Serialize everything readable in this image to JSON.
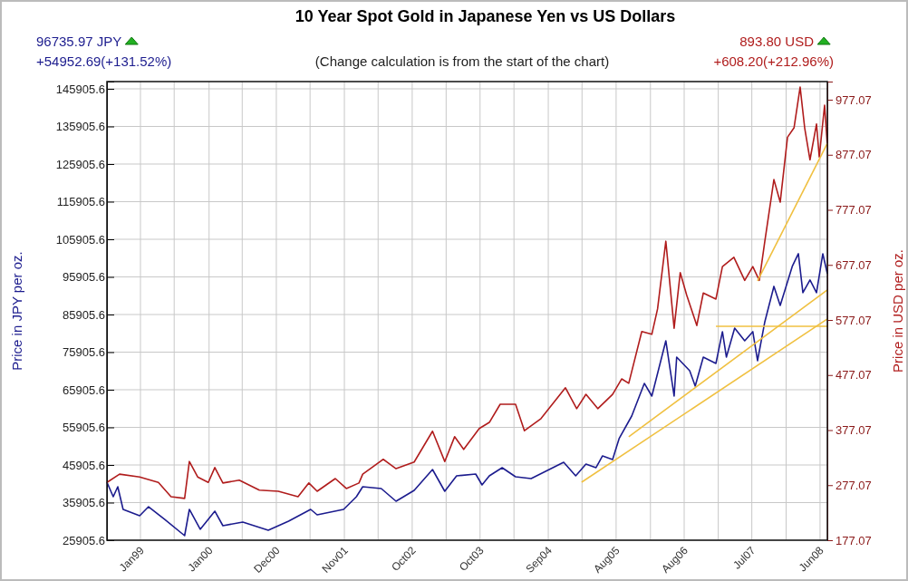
{
  "chart_data": {
    "type": "line",
    "title": "10 Year Spot Gold in Japanese Yen vs US Dollars",
    "subtitle": "(Change calculation is from the start of the chart)",
    "ylabel": "Price in JPY per oz.",
    "y2label": "Price in USD per oz.",
    "annotations": [
      "96735.97 JPY",
      "+54952.69(+131.52%)",
      "893.80 USD",
      "+608.20(+212.96%)"
    ],
    "xlim": [
      "1998-08-01",
      "2008-08-01"
    ],
    "xticks": [
      {
        "value": "1999-01-18",
        "label": "Jan99"
      },
      {
        "value": "1999-07-08",
        "label": null
      },
      {
        "value": "2000-01-01",
        "label": "Jan00"
      },
      {
        "value": "2000-06-17",
        "label": null
      },
      {
        "value": "2000-12-07",
        "label": "Dec00"
      },
      {
        "value": "2001-05-27",
        "label": null
      },
      {
        "value": "2001-11-17",
        "label": "Nov01"
      },
      {
        "value": "2002-05-07",
        "label": null
      },
      {
        "value": "2002-10-27",
        "label": "Oct02"
      },
      {
        "value": "2003-04-17",
        "label": null
      },
      {
        "value": "2003-10-06",
        "label": "Oct03"
      },
      {
        "value": "2004-03-26",
        "label": null
      },
      {
        "value": "2004-09-16",
        "label": "Sep04"
      },
      {
        "value": "2005-03-06",
        "label": null
      },
      {
        "value": "2005-08-26",
        "label": "Aug05"
      },
      {
        "value": "2006-02-16",
        "label": null
      },
      {
        "value": "2006-08-06",
        "label": "Aug06"
      },
      {
        "value": "2007-01-26",
        "label": null
      },
      {
        "value": "2007-07-15",
        "label": "Jul07"
      },
      {
        "value": "2008-01-05",
        "label": null
      },
      {
        "value": "2008-06-25",
        "label": "Jun08"
      }
    ],
    "ylim": [
      25905.6,
      147830
    ],
    "yticks": [
      25905.6,
      35905.6,
      45905.6,
      55905.6,
      65905.6,
      75905.6,
      85905.6,
      95905.6,
      105905.6,
      115905.6,
      125905.6,
      135905.6,
      145905.6
    ],
    "y2lim": [
      177.07,
      1010
    ],
    "y2ticks": [
      177.07,
      277.07,
      377.07,
      477.07,
      577.07,
      677.07,
      777.07,
      877.07,
      977.07
    ],
    "grid": true,
    "series": [
      {
        "color": "#1c1c8e",
        "x": [
          "1998-08-01",
          "1998-09-02",
          "1998-09-25",
          "1998-10-22",
          "1999-01-14",
          "1999-02-28",
          "1999-05-20",
          "1999-08-30",
          "1999-09-23",
          "1999-11-17",
          "2000-01-30",
          "2000-03-11",
          "2000-06-20",
          "2000-10-27",
          "2001-02-07",
          "2001-05-30",
          "2001-07-02",
          "2001-11-13",
          "2002-01-17",
          "2002-02-18",
          "2002-05-23",
          "2002-08-06",
          "2002-11-06",
          "2003-02-07",
          "2003-04-10",
          "2003-06-09",
          "2003-09-14",
          "2003-10-16",
          "2003-11-22",
          "2004-01-26",
          "2004-04-03",
          "2004-06-21",
          "2004-12-03",
          "2005-02-02",
          "2005-03-26",
          "2005-05-16",
          "2005-06-18",
          "2005-08-08",
          "2005-09-10",
          "2005-11-13",
          "2006-01-16",
          "2006-02-23",
          "2006-05-05",
          "2006-06-16",
          "2006-06-29",
          "2006-09-03",
          "2006-10-01",
          "2006-11-11",
          "2007-01-14",
          "2007-02-16",
          "2007-03-08",
          "2007-04-19",
          "2007-06-09",
          "2007-07-20",
          "2007-08-13",
          "2007-09-19",
          "2007-11-04",
          "2007-12-06",
          "2008-02-05",
          "2008-03-07",
          "2008-03-30",
          "2008-05-05",
          "2008-06-07",
          "2008-07-09",
          "2008-08-01"
        ],
        "values": [
          41330,
          37470,
          40120,
          34100,
          32410,
          34820,
          31450,
          27110,
          34100,
          28800,
          33620,
          29760,
          30730,
          28560,
          30970,
          34100,
          32650,
          34100,
          37470,
          40120,
          39640,
          36270,
          39160,
          44700,
          38920,
          43020,
          43500,
          40610,
          43020,
          45190,
          42780,
          42290,
          46630,
          43020,
          46150,
          45190,
          48320,
          47360,
          52900,
          58920,
          67600,
          64220,
          78920,
          64220,
          74590,
          70970,
          66880,
          74590,
          72900,
          81340,
          74590,
          82300,
          78920,
          81340,
          73620,
          83990,
          93390,
          88330,
          98690,
          102060,
          91700,
          95070,
          91700,
          102060,
          96735.97
        ]
      },
      {
        "color": "#b01c1c",
        "axis": "y2",
        "x": [
          "1998-08-01",
          "1998-10-04",
          "1999-01-14",
          "1999-04-19",
          "1999-06-22",
          "1999-08-30",
          "1999-09-23",
          "1999-11-04",
          "1999-12-28",
          "2000-01-30",
          "2000-03-11",
          "2000-06-02",
          "2000-09-12",
          "2000-12-17",
          "2001-03-27",
          "2001-05-21",
          "2001-07-02",
          "2001-10-02",
          "2001-11-27",
          "2002-01-30",
          "2002-02-18",
          "2002-06-02",
          "2002-08-06",
          "2002-11-06",
          "2003-02-07",
          "2003-04-10",
          "2003-05-30",
          "2003-07-15",
          "2003-10-02",
          "2003-11-22",
          "2004-01-16",
          "2004-04-03",
          "2004-05-18",
          "2004-08-10",
          "2004-12-12",
          "2005-02-07",
          "2005-03-26",
          "2005-05-25",
          "2005-08-08",
          "2005-09-23",
          "2005-10-29",
          "2006-01-03",
          "2006-02-23",
          "2006-03-24",
          "2006-05-05",
          "2006-06-16",
          "2006-07-17",
          "2006-08-19",
          "2006-10-09",
          "2006-11-11",
          "2007-01-14",
          "2007-02-16",
          "2007-04-15",
          "2007-06-09",
          "2007-07-20",
          "2007-08-22",
          "2007-09-19",
          "2007-11-04",
          "2007-12-06",
          "2008-01-12",
          "2008-02-14",
          "2008-03-16",
          "2008-04-08",
          "2008-05-05",
          "2008-06-07",
          "2008-06-21",
          "2008-07-18",
          "2008-08-01"
        ],
        "values": [
          282,
          297,
          292,
          282,
          256,
          253,
          320,
          292,
          282,
          309,
          281,
          286,
          268,
          266,
          256,
          281,
          266,
          289,
          271,
          281,
          297,
          324,
          307,
          319,
          375,
          320,
          365,
          342,
          380,
          391,
          424,
          424,
          376,
          398,
          454,
          416,
          442,
          416,
          442,
          470,
          462,
          556,
          551,
          597,
          720,
          562,
          663,
          622,
          567,
          626,
          615,
          674,
          691,
          649,
          674,
          649,
          720,
          832,
          791,
          909,
          926,
          1000,
          926,
          868,
          933,
          873,
          967,
          893.8
        ]
      },
      {
        "color": "#f0c040",
        "x": [
          "2005-03-04",
          "2008-08-01"
        ],
        "values": [
          41330,
          84710
        ]
      },
      {
        "color": "#f0c040",
        "x": [
          "2005-10-29",
          "2008-08-01"
        ],
        "values": [
          53380,
          92420
        ]
      },
      {
        "color": "#f0c040",
        "x": [
          "2007-01-14",
          "2008-08-01"
        ],
        "values": [
          82780,
          82780
        ]
      },
      {
        "color": "#f0c040",
        "axis": "y2",
        "x": [
          "2007-08-13",
          "2008-08-01"
        ],
        "values": [
          648,
          898
        ]
      }
    ]
  }
}
